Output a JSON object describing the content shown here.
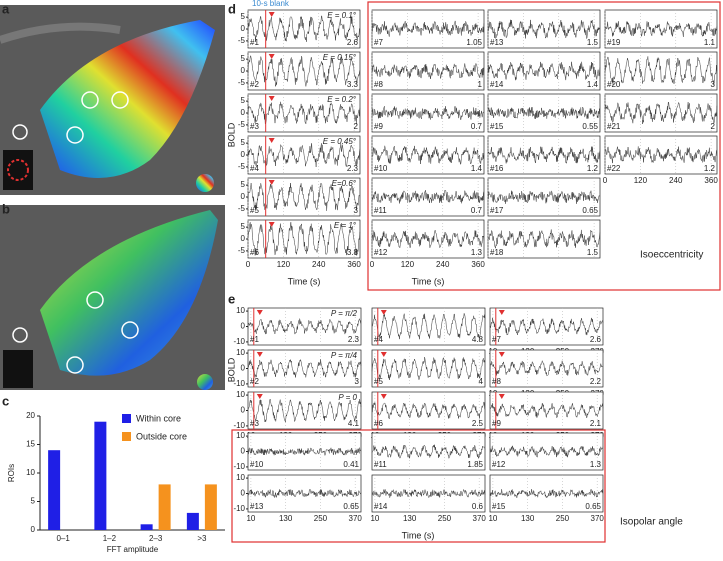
{
  "panel_labels": {
    "a": "a",
    "b": "b",
    "c": "c",
    "d": "d",
    "e": "e"
  },
  "chart_data": {
    "type": "bar",
    "xlabel": "FFT amplitude",
    "ylabel": "ROIs",
    "categories": [
      "0–1",
      "1–2",
      "2–3",
      ">3"
    ],
    "series": [
      {
        "name": "Within core",
        "color": "#1f1fe6",
        "values": [
          14,
          19,
          1,
          3
        ]
      },
      {
        "name": "Outside core",
        "color": "#f5921e",
        "values": [
          0,
          0,
          8,
          8
        ]
      }
    ],
    "ylim": [
      0,
      20
    ],
    "yticks": [
      0,
      5,
      10,
      15,
      20
    ],
    "legend": "upper right"
  },
  "panel_d": {
    "annotation": "10-s blank",
    "ylabel": "BOLD",
    "xlabel": "Time (s)",
    "group_label": "Isoeccentricity",
    "ylim": [
      -8,
      8
    ],
    "yticks": [
      5,
      0,
      -5
    ],
    "xlim": [
      0,
      380
    ],
    "xticks": [
      0,
      120,
      240,
      360
    ],
    "plots": [
      {
        "id": "#1",
        "amplitude": 2.6,
        "label": "E = 0.1°"
      },
      {
        "id": "#2",
        "amplitude": 3.3,
        "label": "E = 0.15°"
      },
      {
        "id": "#3",
        "amplitude": 2,
        "label": "E = 0.2°"
      },
      {
        "id": "#4",
        "amplitude": 2.3,
        "label": "E = 0.45°"
      },
      {
        "id": "#5",
        "amplitude": 3,
        "label": "E=0.6°"
      },
      {
        "id": "#6",
        "amplitude": 3.8,
        "label": "E = 1°"
      },
      {
        "id": "#7",
        "amplitude": 1.05
      },
      {
        "id": "#8",
        "amplitude": 1
      },
      {
        "id": "#9",
        "amplitude": 0.7
      },
      {
        "id": "#10",
        "amplitude": 1.4
      },
      {
        "id": "#11",
        "amplitude": 0.7
      },
      {
        "id": "#12",
        "amplitude": 1.3
      },
      {
        "id": "#13",
        "amplitude": 1.5
      },
      {
        "id": "#14",
        "amplitude": 1.4
      },
      {
        "id": "#15",
        "amplitude": 0.55
      },
      {
        "id": "#16",
        "amplitude": 1.2
      },
      {
        "id": "#17",
        "amplitude": 0.65
      },
      {
        "id": "#18",
        "amplitude": 1.5
      },
      {
        "id": "#19",
        "amplitude": 1.1
      },
      {
        "id": "#20",
        "amplitude": 3
      },
      {
        "id": "#21",
        "amplitude": 2
      },
      {
        "id": "#22",
        "amplitude": 1.2
      }
    ]
  },
  "panel_e": {
    "ylabel": "BOLD",
    "xlabel": "Time (s)",
    "group_label": "Isopolar angle",
    "ylim": [
      -12,
      12
    ],
    "yticks": [
      10,
      0,
      -10
    ],
    "xlim": [
      0,
      390
    ],
    "xticks": [
      10,
      130,
      250,
      370
    ],
    "plots": [
      {
        "id": "#1",
        "amplitude": 2.3,
        "label": "P = π/2"
      },
      {
        "id": "#2",
        "amplitude": 3,
        "label": "P = π/4"
      },
      {
        "id": "#3",
        "amplitude": 4.1,
        "label": "P = 0"
      },
      {
        "id": "#4",
        "amplitude": 4.8
      },
      {
        "id": "#5",
        "amplitude": 4
      },
      {
        "id": "#6",
        "amplitude": 2.5
      },
      {
        "id": "#7",
        "amplitude": 2.6
      },
      {
        "id": "#8",
        "amplitude": 2.2
      },
      {
        "id": "#9",
        "amplitude": 2.1
      },
      {
        "id": "#10",
        "amplitude": 0.41
      },
      {
        "id": "#11",
        "amplitude": 1.85
      },
      {
        "id": "#12",
        "amplitude": 1.3
      },
      {
        "id": "#13",
        "amplitude": 0.65
      },
      {
        "id": "#14",
        "amplitude": 0.6
      },
      {
        "id": "#15",
        "amplitude": 0.65
      }
    ]
  }
}
